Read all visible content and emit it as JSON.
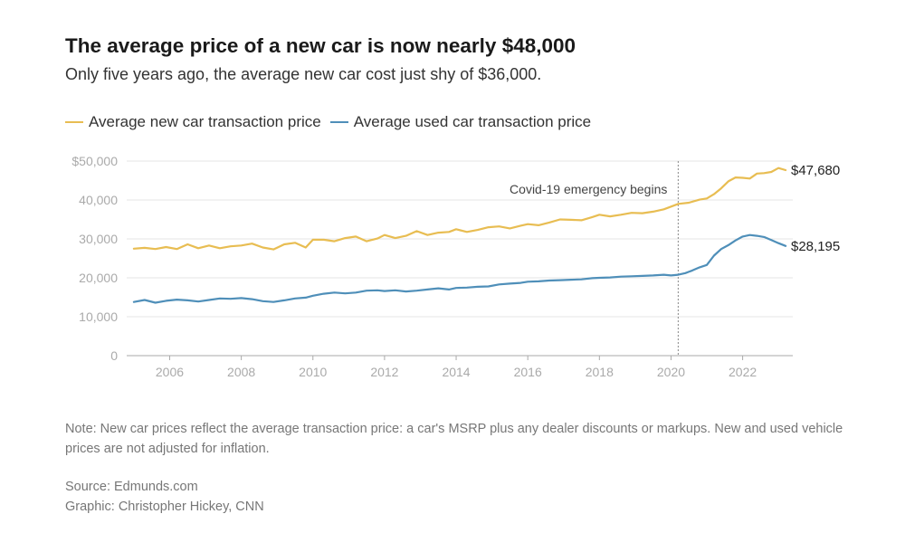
{
  "header": {
    "title": "The average price of a new car is now nearly $48,000",
    "subtitle": "Only five years ago, the average new car cost just shy of $36,000."
  },
  "legend": [
    {
      "label": "Average new car transaction price",
      "color": "#e8bd52"
    },
    {
      "label": "Average used car transaction price",
      "color": "#4f8fb9"
    }
  ],
  "chart_data": {
    "type": "line",
    "title": "The average price of a new car is now nearly $48,000",
    "xlabel": "",
    "ylabel": "",
    "xlim": [
      2004.8,
      2023.4
    ],
    "ylim": [
      0,
      50000
    ],
    "yticks": [
      {
        "value": 0,
        "label": "0"
      },
      {
        "value": 10000,
        "label": "10,000"
      },
      {
        "value": 20000,
        "label": "20,000"
      },
      {
        "value": 30000,
        "label": "30,000"
      },
      {
        "value": 40000,
        "label": "40,000"
      },
      {
        "value": 50000,
        "label": "$50,000"
      }
    ],
    "xticks": [
      {
        "value": 2006,
        "label": "2006"
      },
      {
        "value": 2008,
        "label": "2008"
      },
      {
        "value": 2010,
        "label": "2010"
      },
      {
        "value": 2012,
        "label": "2012"
      },
      {
        "value": 2014,
        "label": "2014"
      },
      {
        "value": 2016,
        "label": "2016"
      },
      {
        "value": 2018,
        "label": "2018"
      },
      {
        "value": 2020,
        "label": "2020"
      },
      {
        "value": 2022,
        "label": "2022"
      }
    ],
    "grid": true,
    "annotation": {
      "x": 2020.2,
      "label": "Covid-19 emergency begins"
    },
    "series": [
      {
        "name": "Average new car transaction price",
        "color": "#e8bd52",
        "end_label": "$47,680",
        "points": [
          [
            2005.0,
            27500
          ],
          [
            2005.3,
            27700
          ],
          [
            2005.6,
            27400
          ],
          [
            2005.9,
            27900
          ],
          [
            2006.2,
            27400
          ],
          [
            2006.5,
            28600
          ],
          [
            2006.8,
            27600
          ],
          [
            2007.1,
            28300
          ],
          [
            2007.4,
            27600
          ],
          [
            2007.7,
            28100
          ],
          [
            2008.0,
            28300
          ],
          [
            2008.3,
            28800
          ],
          [
            2008.6,
            27800
          ],
          [
            2008.9,
            27300
          ],
          [
            2009.2,
            28600
          ],
          [
            2009.5,
            29000
          ],
          [
            2009.8,
            27800
          ],
          [
            2010.0,
            29800
          ],
          [
            2010.3,
            29800
          ],
          [
            2010.6,
            29400
          ],
          [
            2010.9,
            30200
          ],
          [
            2011.2,
            30600
          ],
          [
            2011.5,
            29400
          ],
          [
            2011.8,
            30100
          ],
          [
            2012.0,
            31000
          ],
          [
            2012.3,
            30200
          ],
          [
            2012.6,
            30800
          ],
          [
            2012.9,
            32000
          ],
          [
            2013.2,
            31000
          ],
          [
            2013.5,
            31600
          ],
          [
            2013.8,
            31800
          ],
          [
            2014.0,
            32500
          ],
          [
            2014.3,
            31800
          ],
          [
            2014.6,
            32300
          ],
          [
            2014.9,
            33000
          ],
          [
            2015.2,
            33200
          ],
          [
            2015.5,
            32700
          ],
          [
            2015.8,
            33400
          ],
          [
            2016.0,
            33800
          ],
          [
            2016.3,
            33500
          ],
          [
            2016.6,
            34200
          ],
          [
            2016.9,
            35000
          ],
          [
            2017.2,
            34900
          ],
          [
            2017.5,
            34800
          ],
          [
            2017.8,
            35600
          ],
          [
            2018.0,
            36200
          ],
          [
            2018.3,
            35800
          ],
          [
            2018.6,
            36200
          ],
          [
            2018.9,
            36700
          ],
          [
            2019.2,
            36600
          ],
          [
            2019.5,
            37000
          ],
          [
            2019.8,
            37600
          ],
          [
            2020.0,
            38300
          ],
          [
            2020.2,
            39000
          ],
          [
            2020.5,
            39300
          ],
          [
            2020.8,
            40100
          ],
          [
            2021.0,
            40400
          ],
          [
            2021.2,
            41500
          ],
          [
            2021.4,
            43000
          ],
          [
            2021.6,
            44800
          ],
          [
            2021.8,
            45800
          ],
          [
            2022.0,
            45700
          ],
          [
            2022.2,
            45500
          ],
          [
            2022.4,
            46800
          ],
          [
            2022.6,
            46900
          ],
          [
            2022.8,
            47200
          ],
          [
            2023.0,
            48200
          ],
          [
            2023.2,
            47680
          ]
        ]
      },
      {
        "name": "Average used car transaction price",
        "color": "#4f8fb9",
        "end_label": "$28,195",
        "points": [
          [
            2005.0,
            13800
          ],
          [
            2005.3,
            14300
          ],
          [
            2005.6,
            13600
          ],
          [
            2005.9,
            14100
          ],
          [
            2006.2,
            14400
          ],
          [
            2006.5,
            14200
          ],
          [
            2006.8,
            13900
          ],
          [
            2007.1,
            14300
          ],
          [
            2007.4,
            14700
          ],
          [
            2007.7,
            14600
          ],
          [
            2008.0,
            14800
          ],
          [
            2008.3,
            14500
          ],
          [
            2008.6,
            14000
          ],
          [
            2008.9,
            13800
          ],
          [
            2009.2,
            14200
          ],
          [
            2009.5,
            14700
          ],
          [
            2009.8,
            14900
          ],
          [
            2010.0,
            15400
          ],
          [
            2010.3,
            15900
          ],
          [
            2010.6,
            16200
          ],
          [
            2010.9,
            16000
          ],
          [
            2011.2,
            16200
          ],
          [
            2011.5,
            16700
          ],
          [
            2011.8,
            16800
          ],
          [
            2012.0,
            16600
          ],
          [
            2012.3,
            16800
          ],
          [
            2012.6,
            16500
          ],
          [
            2012.9,
            16700
          ],
          [
            2013.2,
            17000
          ],
          [
            2013.5,
            17300
          ],
          [
            2013.8,
            17000
          ],
          [
            2014.0,
            17400
          ],
          [
            2014.3,
            17500
          ],
          [
            2014.6,
            17700
          ],
          [
            2014.9,
            17800
          ],
          [
            2015.2,
            18300
          ],
          [
            2015.5,
            18500
          ],
          [
            2015.8,
            18700
          ],
          [
            2016.0,
            19000
          ],
          [
            2016.3,
            19100
          ],
          [
            2016.6,
            19300
          ],
          [
            2016.9,
            19400
          ],
          [
            2017.2,
            19500
          ],
          [
            2017.5,
            19600
          ],
          [
            2017.8,
            19900
          ],
          [
            2018.0,
            20000
          ],
          [
            2018.3,
            20100
          ],
          [
            2018.6,
            20300
          ],
          [
            2018.9,
            20400
          ],
          [
            2019.2,
            20500
          ],
          [
            2019.5,
            20600
          ],
          [
            2019.8,
            20800
          ],
          [
            2020.0,
            20600
          ],
          [
            2020.2,
            20800
          ],
          [
            2020.4,
            21200
          ],
          [
            2020.6,
            21900
          ],
          [
            2020.8,
            22700
          ],
          [
            2021.0,
            23300
          ],
          [
            2021.2,
            25700
          ],
          [
            2021.4,
            27400
          ],
          [
            2021.6,
            28400
          ],
          [
            2021.8,
            29600
          ],
          [
            2022.0,
            30600
          ],
          [
            2022.2,
            31000
          ],
          [
            2022.4,
            30800
          ],
          [
            2022.6,
            30500
          ],
          [
            2022.8,
            29700
          ],
          [
            2023.0,
            28900
          ],
          [
            2023.2,
            28195
          ]
        ]
      }
    ]
  },
  "footer": {
    "note": "Note: New car prices reflect the average transaction price: a car's MSRP plus any dealer discounts or markups. New and used vehicle prices are not adjusted for inflation.",
    "source": "Source: Edmunds.com",
    "credit": "Graphic: Christopher Hickey, CNN"
  }
}
